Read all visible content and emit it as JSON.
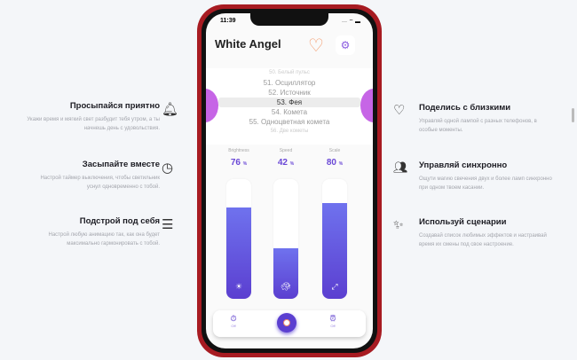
{
  "features_left": [
    {
      "title": "Просыпайся приятно",
      "text": "Укажи время и мягкий свет разбудит тебя утром, а ты начнешь день с удовольствия.",
      "icon": "bell-icon"
    },
    {
      "title": "Засыпайте вместе",
      "text": "Настрой таймер выключения, чтобы светильник уснул одновременно с тобой.",
      "icon": "clock-timer-icon"
    },
    {
      "title": "Подстрой под себя",
      "text": "Настрой любую анимацию так, как она будет максимально гармонировать с тобой.",
      "icon": "sliders-icon"
    }
  ],
  "features_right": [
    {
      "title": "Поделись с близкими",
      "text": "Управляй одной лампой с разных телефонов, в особые моменты.",
      "icon": "hearts-icon"
    },
    {
      "title": "Управляй синхронно",
      "text": "Ощути магию свечения двух и более ламп синхронно при одном твоем касании.",
      "icon": "people-icon"
    },
    {
      "title": "Используй сценарии",
      "text": "Создавай список любимых эффектов и настраивай время их смены под свое настроение.",
      "icon": "magic-wand-icon"
    }
  ],
  "phone": {
    "time": "11:39",
    "status": "··· ⌔ ▬",
    "title": "White Angel",
    "picker": [
      "50. Белый пульс",
      "51. Осциллятор",
      "52. Источник",
      "53. Фея",
      "54. Комета",
      "55. Одноцветная комета",
      "56. Две кометы"
    ],
    "selected": 3,
    "sliders": [
      {
        "label": "Brightness",
        "value": "76",
        "unit": "%",
        "fill": 76,
        "icon": "sun-icon"
      },
      {
        "label": "Speed",
        "value": "42",
        "unit": "%",
        "fill": 42,
        "icon": "turtle-icon"
      },
      {
        "label": "Scale",
        "value": "80",
        "unit": "%",
        "fill": 80,
        "icon": "expand-icon"
      }
    ],
    "bottom": {
      "timer_label": "Off",
      "alarm_label": "Off"
    }
  },
  "colors": {
    "accent": "#5b3fd0",
    "frame": "#a71b22",
    "blob": "#c665e6"
  }
}
